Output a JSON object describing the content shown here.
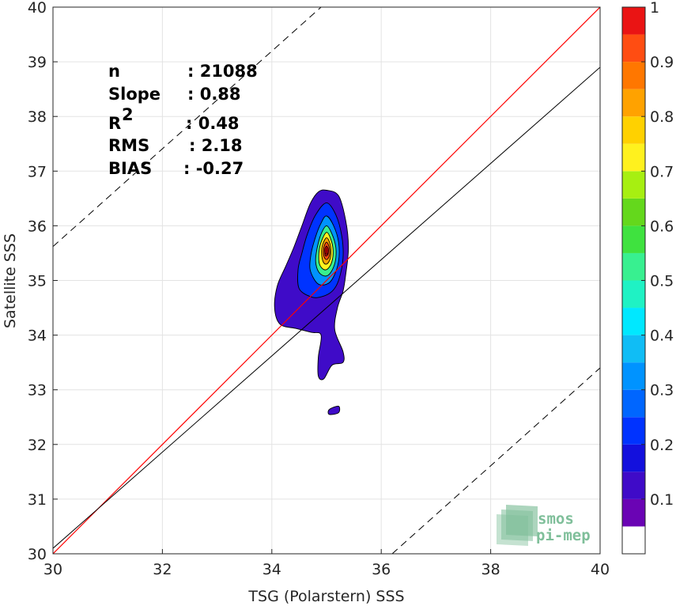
{
  "chart_data": {
    "type": "heatmap",
    "title": "",
    "xlabel": "TSG (Polarstern) SSS",
    "ylabel": "Satellite SSS",
    "xlim": [
      30,
      40
    ],
    "ylim": [
      30,
      40
    ],
    "xticks": [
      "30",
      "32",
      "34",
      "36",
      "38",
      "40"
    ],
    "yticks": [
      "30",
      "31",
      "32",
      "33",
      "34",
      "35",
      "36",
      "37",
      "38",
      "39",
      "40"
    ],
    "grid": true,
    "stats": [
      {
        "label": "n",
        "value": ": 21088"
      },
      {
        "label": "Slope",
        "value": ": 0.88"
      },
      {
        "label": "R",
        "sup": "2",
        "value": ": 0.48"
      },
      {
        "label": "RMS",
        "value": ": 2.18"
      },
      {
        "label": "BIAS",
        "value": ": -0.27"
      }
    ],
    "reference_lines": {
      "one_to_one": {
        "slope": 1,
        "intercept": 0,
        "color": "#ff0000"
      },
      "regression": {
        "x0": 30,
        "y0": 30.1,
        "x1": 40,
        "y1": 38.9,
        "color": "#000000"
      },
      "dashed_upper": {
        "x0": 30,
        "y0": 35.62,
        "x1": 34.9,
        "y1": 40
      },
      "dashed_lower": {
        "x0": 36.2,
        "y0": 30,
        "x1": 40,
        "y1": 33.4
      }
    },
    "density_peak": {
      "x": 35.0,
      "y": 35.55
    },
    "colorbar": {
      "ticks": [
        "0.1",
        "0.2",
        "0.3",
        "0.4",
        "0.5",
        "0.6",
        "0.7",
        "0.8",
        "0.9",
        "1"
      ],
      "levels": [
        0,
        0.05,
        0.1,
        0.15,
        0.2,
        0.25,
        0.3,
        0.35,
        0.4,
        0.45,
        0.5,
        0.55,
        0.6,
        0.65,
        0.7,
        0.75,
        0.8,
        0.85,
        0.9,
        0.95,
        1.0
      ],
      "colors": [
        "#ffffff",
        "#6a04b4",
        "#3f0bc8",
        "#1310dd",
        "#0033ff",
        "#0066ff",
        "#0093ff",
        "#10bdf5",
        "#00e8ff",
        "#1ff2c4",
        "#38f090",
        "#3fe23f",
        "#64d81c",
        "#a7ef11",
        "#fff11e",
        "#ffd100",
        "#ffa200",
        "#ff7700",
        "#ff4d12",
        "#ea1414",
        "#930202"
      ]
    },
    "contours": [
      {
        "level": 0.05,
        "color": "#3f0bc8",
        "points": [
          [
            35.0,
            36.65
          ],
          [
            35.22,
            36.55
          ],
          [
            35.35,
            36.1
          ],
          [
            35.4,
            35.6
          ],
          [
            35.35,
            35.1
          ],
          [
            35.3,
            34.8
          ],
          [
            35.2,
            34.5
          ],
          [
            35.15,
            34.1
          ],
          [
            35.3,
            33.7
          ],
          [
            35.3,
            33.5
          ],
          [
            35.1,
            33.45
          ],
          [
            34.95,
            33.2
          ],
          [
            34.85,
            33.25
          ],
          [
            34.85,
            33.6
          ],
          [
            34.9,
            34.0
          ],
          [
            34.72,
            34.05
          ],
          [
            34.45,
            34.12
          ],
          [
            34.15,
            34.2
          ],
          [
            34.05,
            34.5
          ],
          [
            34.1,
            34.9
          ],
          [
            34.25,
            35.25
          ],
          [
            34.4,
            35.6
          ],
          [
            34.55,
            36.0
          ],
          [
            34.7,
            36.4
          ],
          [
            34.85,
            36.62
          ]
        ]
      },
      {
        "level": 0.1,
        "color": "#0033ff",
        "points": [
          [
            35.0,
            36.42
          ],
          [
            35.17,
            36.2
          ],
          [
            35.28,
            35.8
          ],
          [
            35.3,
            35.4
          ],
          [
            35.22,
            35.0
          ],
          [
            35.1,
            34.8
          ],
          [
            34.9,
            34.7
          ],
          [
            34.72,
            34.7
          ],
          [
            34.5,
            34.85
          ],
          [
            34.48,
            35.2
          ],
          [
            34.55,
            35.5
          ],
          [
            34.65,
            35.85
          ],
          [
            34.8,
            36.2
          ]
        ]
      },
      {
        "level": 0.2,
        "color": "#0093ff",
        "points": [
          [
            35.0,
            36.18
          ],
          [
            35.13,
            36.0
          ],
          [
            35.22,
            35.7
          ],
          [
            35.22,
            35.35
          ],
          [
            35.12,
            35.05
          ],
          [
            35.0,
            34.93
          ],
          [
            34.83,
            34.95
          ],
          [
            34.7,
            35.2
          ],
          [
            34.72,
            35.5
          ],
          [
            34.8,
            35.8
          ],
          [
            34.9,
            36.05
          ]
        ]
      },
      {
        "level": 0.3,
        "color": "#38f090",
        "points": [
          [
            35.0,
            36.0
          ],
          [
            35.1,
            35.85
          ],
          [
            35.17,
            35.6
          ],
          [
            35.16,
            35.35
          ],
          [
            35.08,
            35.15
          ],
          [
            34.98,
            35.08
          ],
          [
            34.86,
            35.15
          ],
          [
            34.8,
            35.35
          ],
          [
            34.83,
            35.6
          ],
          [
            34.9,
            35.85
          ]
        ]
      },
      {
        "level": 0.45,
        "color": "#fff11e",
        "points": [
          [
            35.0,
            35.88
          ],
          [
            35.08,
            35.75
          ],
          [
            35.12,
            35.55
          ],
          [
            35.1,
            35.35
          ],
          [
            35.03,
            35.22
          ],
          [
            34.95,
            35.2
          ],
          [
            34.87,
            35.3
          ],
          [
            34.86,
            35.5
          ],
          [
            34.9,
            35.7
          ]
        ]
      },
      {
        "level": 0.6,
        "color": "#ffa200",
        "points": [
          [
            35.0,
            35.78
          ],
          [
            35.06,
            35.68
          ],
          [
            35.08,
            35.52
          ],
          [
            35.06,
            35.38
          ],
          [
            35.0,
            35.3
          ],
          [
            34.94,
            35.34
          ],
          [
            34.91,
            35.5
          ],
          [
            34.93,
            35.66
          ]
        ]
      },
      {
        "level": 0.75,
        "color": "#ff4d12",
        "points": [
          [
            35.0,
            35.7
          ],
          [
            35.05,
            35.6
          ],
          [
            35.05,
            35.45
          ],
          [
            35.0,
            35.38
          ],
          [
            34.95,
            35.45
          ],
          [
            34.95,
            35.6
          ]
        ]
      },
      {
        "level": 0.9,
        "color": "#ea1414",
        "points": [
          [
            35.0,
            35.63
          ],
          [
            35.03,
            35.55
          ],
          [
            35.02,
            35.47
          ],
          [
            34.98,
            35.45
          ],
          [
            34.97,
            35.55
          ]
        ]
      }
    ],
    "small_patch": {
      "color": "#3f0bc8",
      "points": [
        [
          35.05,
          32.64
        ],
        [
          35.22,
          32.7
        ],
        [
          35.22,
          32.58
        ],
        [
          35.05,
          32.55
        ]
      ]
    }
  },
  "logo": {
    "line1": "smos",
    "line2": "pi-mep",
    "color": "#7fbf9a"
  }
}
